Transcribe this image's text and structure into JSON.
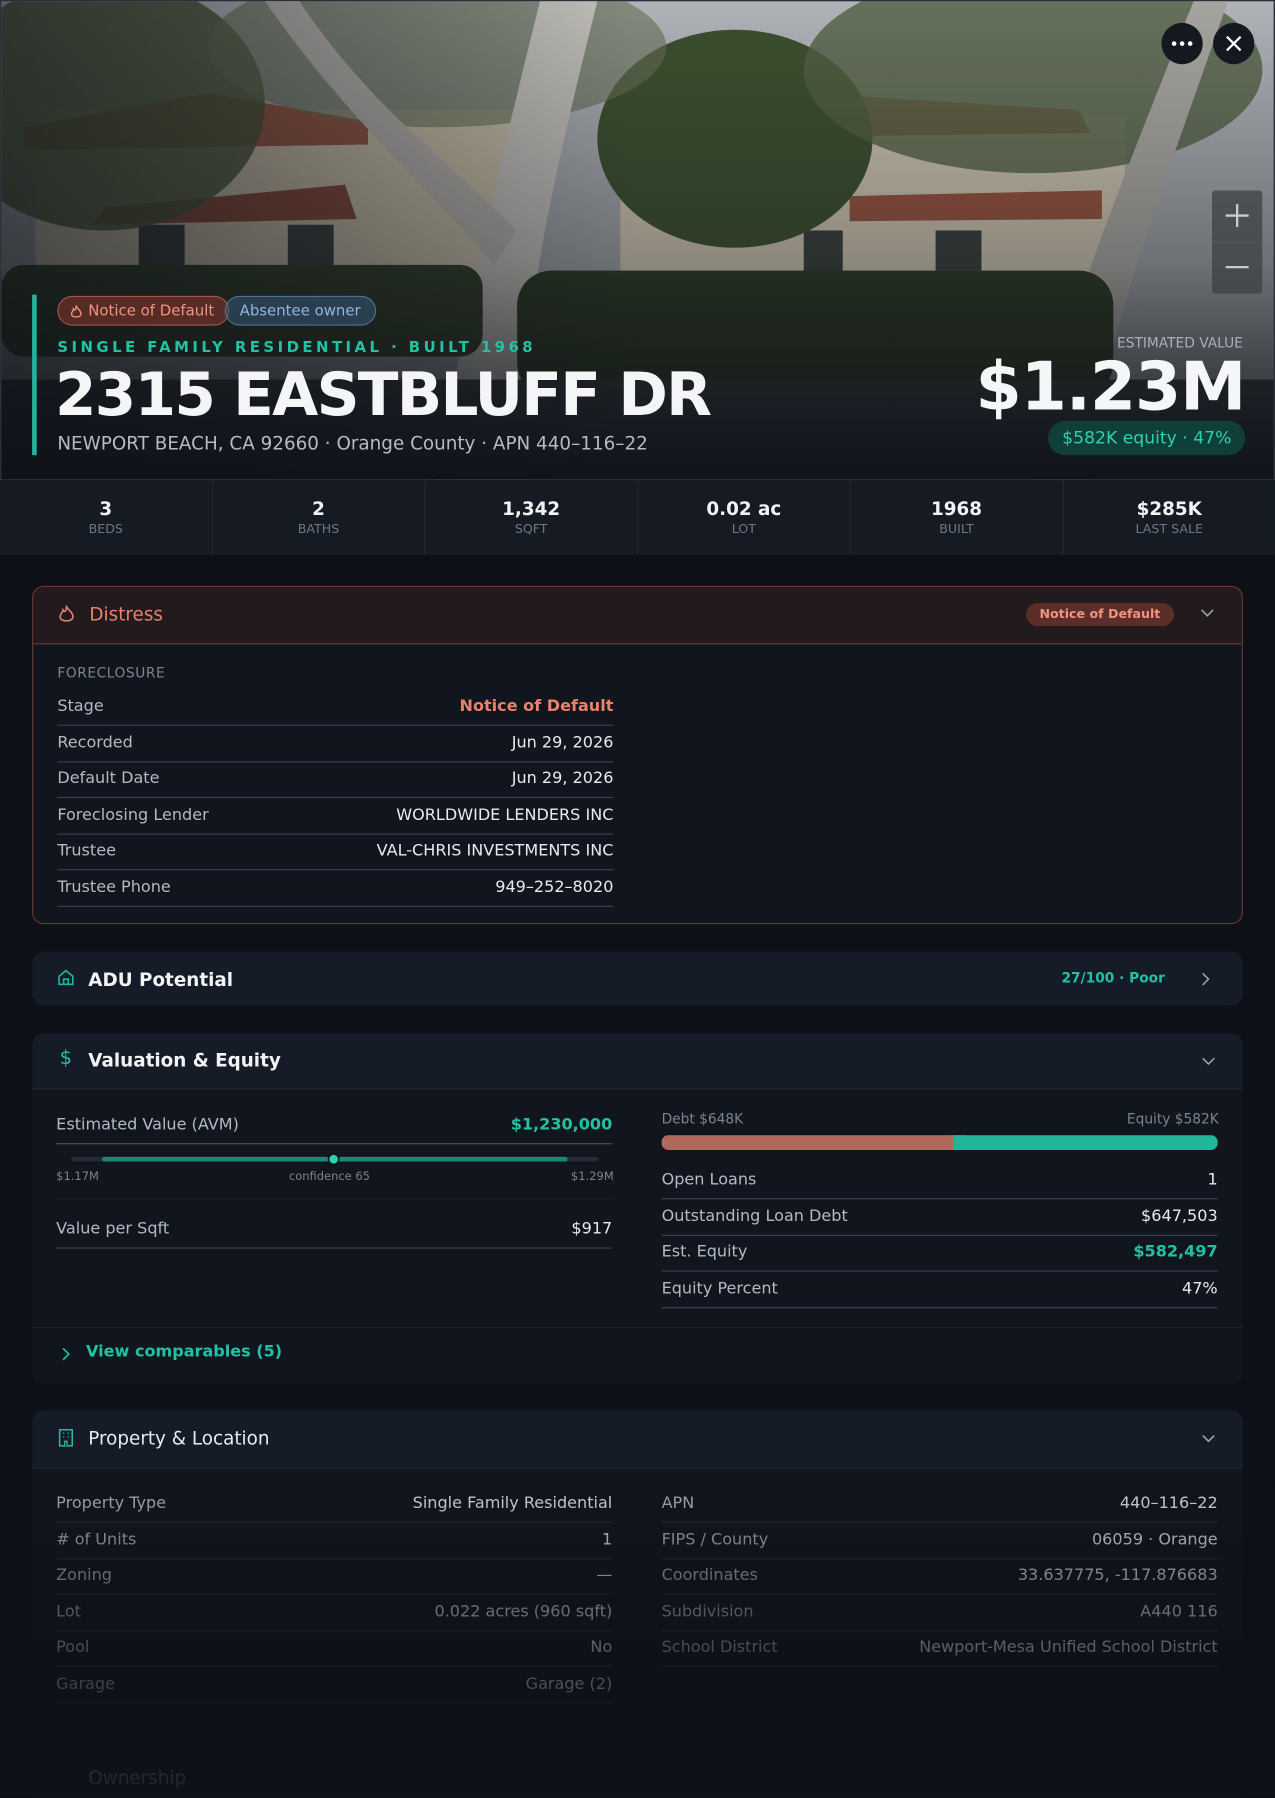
{
  "hero": {
    "badges": [
      "Notice of Default",
      "Absentee owner"
    ],
    "kicker": "SINGLE FAMILY RESIDENTIAL · BUILT 1968",
    "address": "2315 EASTBLUFF DR",
    "location": "NEWPORT BEACH, CA 92660 · Orange County · APN 440–116–22",
    "estimate_label": "ESTIMATED VALUE",
    "estimate": "$1.23M",
    "equity": "$582K equity · 47%"
  },
  "stats": [
    {
      "value": "3",
      "label": "BEDS"
    },
    {
      "value": "2",
      "label": "BATHS"
    },
    {
      "value": "1,342",
      "label": "SQFT"
    },
    {
      "value": "0.02 ac",
      "label": "LOT"
    },
    {
      "value": "1968",
      "label": "BUILT"
    },
    {
      "value": "$285K",
      "label": "LAST SALE"
    }
  ],
  "distress": {
    "title": "Distress",
    "badge": "Notice of Default",
    "group": "FORECLOSURE",
    "rows": [
      [
        "Stage",
        "Notice of Default"
      ],
      [
        "Recorded",
        "Jun 29, 2026"
      ],
      [
        "Default Date",
        "Jun 29, 2026"
      ],
      [
        "Foreclosing Lender",
        "WORLDWIDE LENDERS INC"
      ],
      [
        "Trustee",
        "VAL-CHRIS INVESTMENTS INC"
      ],
      [
        "Trustee Phone",
        "949–252–8020"
      ]
    ]
  },
  "adu": {
    "title": "ADU Potential",
    "score": "27/100 · Poor"
  },
  "valuation": {
    "title": "Valuation & Equity",
    "avm_label": "Estimated Value (AVM)",
    "avm_value": "$1,230,000",
    "range_low": "$1.17M",
    "confidence": "confidence 65",
    "range_high": "$1.29M",
    "left_rows": [
      [
        "Value per Sqft",
        "$917"
      ]
    ],
    "debt_label": "Debt $648K",
    "equity_label": "Equity $582K",
    "right_rows": [
      [
        "Open Loans",
        "1"
      ],
      [
        "Outstanding Loan Debt",
        "$647,503"
      ],
      [
        "Est. Equity",
        "$582,497"
      ],
      [
        "Equity Percent",
        "47%"
      ]
    ],
    "link": "View comparables (5)"
  },
  "property": {
    "title": "Property & Location",
    "left": [
      [
        "Property Type",
        "Single Family Residential"
      ],
      [
        "# of Units",
        "1"
      ],
      [
        "Zoning",
        "—"
      ],
      [
        "Lot",
        "0.022 acres (960 sqft)"
      ],
      [
        "Pool",
        "No"
      ],
      [
        "Garage",
        "Garage (2)"
      ]
    ],
    "right": [
      [
        "APN",
        "440–116–22"
      ],
      [
        "FIPS / County",
        "06059 · Orange"
      ],
      [
        "Coordinates",
        "33.637775, -117.876683"
      ],
      [
        "Subdivision",
        "A440 116"
      ],
      [
        "School District",
        "Newport-Mesa Unified School District"
      ]
    ]
  },
  "ownership": {
    "title": "Ownership"
  }
}
